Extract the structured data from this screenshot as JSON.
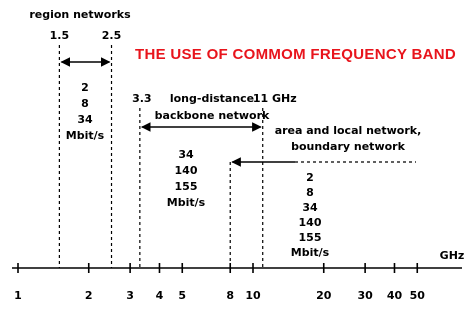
{
  "title": "THE USE OF COMMOM FREQUENCY BAND",
  "axis": {
    "unit": "GHz",
    "ticks": [
      1,
      2,
      3,
      4,
      5,
      8,
      10,
      20,
      30,
      40,
      50
    ]
  },
  "bands": [
    {
      "name": [
        "region networks"
      ],
      "from": {
        "value": 1.5,
        "label": "1.5"
      },
      "to": {
        "value": 2.5,
        "label": "2.5"
      },
      "rates": [
        "2",
        "8",
        "34",
        "Mbit/s"
      ]
    },
    {
      "name": [
        "long-distance",
        "backbone network"
      ],
      "from": {
        "value": 3.3,
        "label": "3.3"
      },
      "to": {
        "value": 11,
        "label": "11 GHz"
      },
      "rates": [
        "34",
        "140",
        "155",
        "Mbit/s"
      ]
    },
    {
      "name": [
        "area and local network,",
        "boundary network"
      ],
      "from": 8,
      "rates": [
        "2",
        "8",
        "34",
        "140",
        "155",
        "Mbit/s"
      ]
    }
  ]
}
